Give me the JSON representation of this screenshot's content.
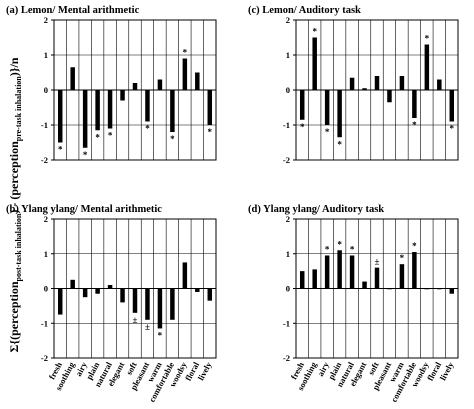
{
  "figure": {
    "ylabel_main": "Σ{(perception",
    "ylabel_sub1": "post-task inhalation",
    "ylabel_mid": ") - (perception",
    "ylabel_sub2": "pre-task inhalation",
    "ylabel_end": ")}/n"
  },
  "chart_data": [
    {
      "type": "bar",
      "title": "(a) Lemon/ Mental arithmetic",
      "categories": [
        "fresh",
        "soothing",
        "airy",
        "plain",
        "natural",
        "elegant",
        "soft",
        "pleasant",
        "warm",
        "comfortable",
        "woodsy",
        "floral",
        "lively"
      ],
      "values": [
        -1.5,
        0.65,
        -1.65,
        -1.15,
        -1.1,
        -0.3,
        0.2,
        -0.9,
        0.3,
        -1.2,
        0.9,
        0.5,
        -1.0
      ],
      "markers": [
        "*",
        "",
        "*",
        "*",
        "*",
        "",
        "",
        "*",
        "",
        "*",
        "*",
        "",
        "*"
      ],
      "ylim": [
        -2,
        2
      ],
      "yticks": [
        "-2",
        "-1",
        "0",
        "1",
        "2"
      ],
      "show_categories": false,
      "grid": true
    },
    {
      "type": "bar",
      "title": "(c) Lemon/ Auditory task",
      "categories": [
        "fresh",
        "soothing",
        "airy",
        "plain",
        "natural",
        "elegant",
        "soft",
        "pleasant",
        "warm",
        "comfortable",
        "woodsy",
        "floral",
        "lively"
      ],
      "values": [
        -0.85,
        1.5,
        -1.0,
        -1.35,
        0.35,
        0.05,
        0.4,
        -0.35,
        0.4,
        -0.8,
        1.3,
        0.3,
        -0.9
      ],
      "markers": [
        "*",
        "*",
        "*",
        "*",
        "",
        "",
        "",
        "",
        "",
        "*",
        "*",
        "",
        "*"
      ],
      "ylim": [
        -2,
        2
      ],
      "yticks": [
        "-2",
        "-1",
        "0",
        "1",
        "2"
      ],
      "show_categories": false,
      "grid": true
    },
    {
      "type": "bar",
      "title": "(b) Ylang ylang/ Mental arithmetic",
      "categories": [
        "fresh",
        "soothing",
        "airy",
        "plain",
        "natural",
        "elegant",
        "soft",
        "pleasant",
        "warm",
        "comfortable",
        "woodsy",
        "floral",
        "lively"
      ],
      "values": [
        -0.75,
        0.25,
        -0.25,
        -0.15,
        0.1,
        -0.4,
        -0.7,
        -0.9,
        -1.15,
        -0.9,
        0.75,
        -0.1,
        -0.35
      ],
      "markers": [
        "",
        "",
        "",
        "",
        "",
        "",
        "±",
        "±",
        "*",
        "",
        "",
        "",
        ""
      ],
      "ylim": [
        -2,
        2
      ],
      "yticks": [
        "-2",
        "-1",
        "0",
        "1",
        "2"
      ],
      "show_categories": true,
      "grid": true
    },
    {
      "type": "bar",
      "title": "(d) Ylang ylang/ Auditory task",
      "categories": [
        "fresh",
        "soothing",
        "airy",
        "plain",
        "natural",
        "elegant",
        "soft",
        "pleasant",
        "warm",
        "comfortable",
        "woodsy",
        "floral",
        "lively"
      ],
      "values": [
        0.5,
        0.55,
        0.95,
        1.1,
        0.95,
        0.2,
        0.6,
        0.0,
        0.7,
        1.05,
        0.0,
        0.0,
        -0.15
      ],
      "markers": [
        "",
        "",
        "*",
        "*",
        "*",
        "",
        "±",
        "",
        "*",
        "*",
        "",
        "",
        ""
      ],
      "ylim": [
        -2,
        2
      ],
      "yticks": [
        "-2",
        "-1",
        "0",
        "1",
        "2"
      ],
      "show_categories": true,
      "grid": true
    }
  ]
}
